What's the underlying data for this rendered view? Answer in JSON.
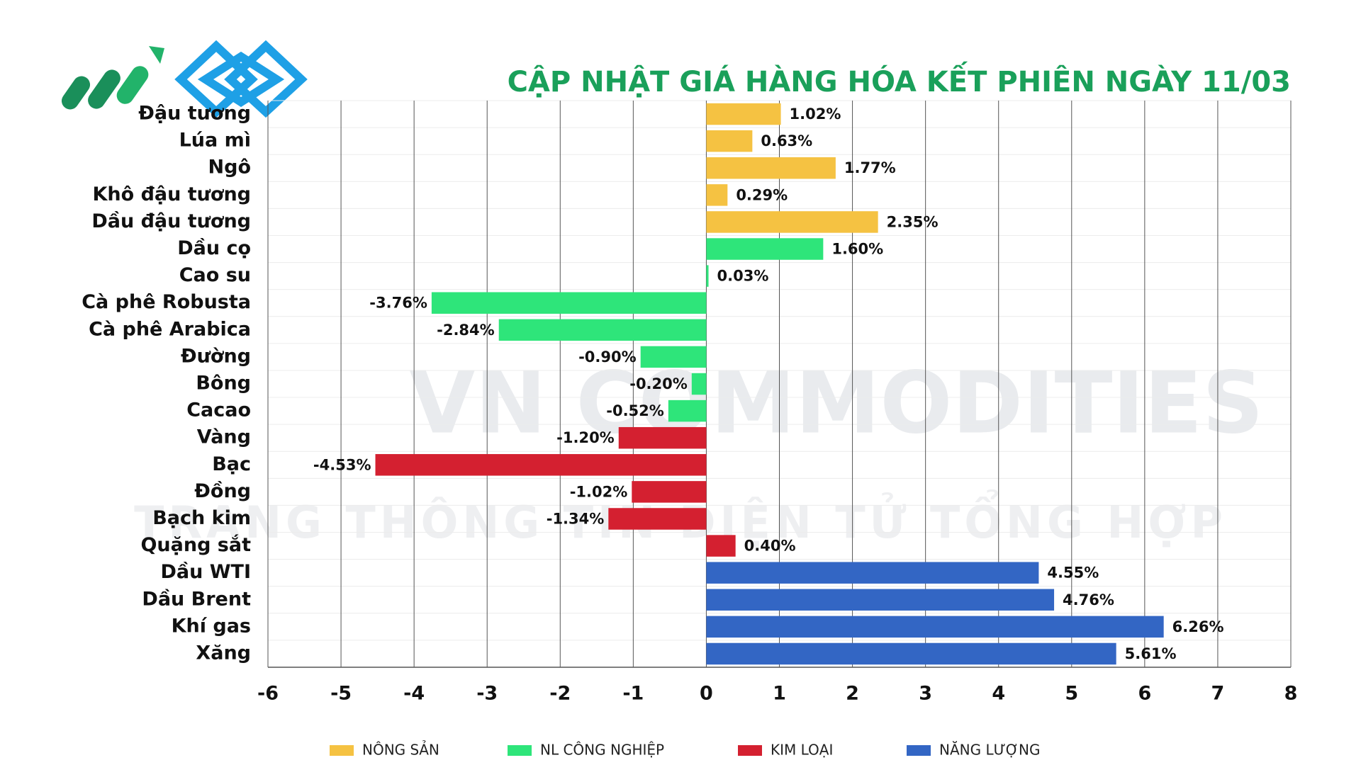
{
  "chart_data": {
    "type": "barh",
    "title": "CẬP NHẬT GIÁ HÀNG HÓA KẾT PHIÊN NGÀY 11/03",
    "watermark": [
      "VN COMMODITIES",
      "TRANG THÔNG TIN ĐIỆN TỬ TỔNG HỢP"
    ],
    "categories": [
      "Đậu tương",
      "Lúa mì",
      "Ngô",
      "Khô đậu tương",
      "Dầu đậu tương",
      "Dầu cọ",
      "Cao su",
      "Cà phê Robusta",
      "Cà phê Arabica",
      "Đường",
      "Bông",
      "Cacao",
      "Vàng",
      "Bạc",
      "Đồng",
      "Bạch kim",
      "Quặng sắt",
      "Dầu WTI",
      "Dầu Brent",
      "Khí gas",
      "Xăng"
    ],
    "series": [
      {
        "name": "NÔNG SẢN",
        "color": "#f5c242",
        "values": [
          1.02,
          0.63,
          1.77,
          0.29,
          2.35,
          null,
          null,
          null,
          null,
          null,
          null,
          null,
          null,
          null,
          null,
          null,
          null,
          null,
          null,
          null,
          null
        ],
        "value_labels": [
          "1.02%",
          "0.63%",
          "1.77%",
          "0.29%",
          "2.35%",
          null,
          null,
          null,
          null,
          null,
          null,
          null,
          null,
          null,
          null,
          null,
          null,
          null,
          null,
          null,
          null
        ]
      },
      {
        "name": "NL CÔNG NGHIỆP",
        "color": "#2ee57a",
        "values": [
          null,
          null,
          null,
          null,
          null,
          1.6,
          0.03,
          -3.76,
          -2.84,
          -0.9,
          -0.2,
          -0.52,
          null,
          null,
          null,
          null,
          null,
          null,
          null,
          null,
          null
        ],
        "value_labels": [
          null,
          null,
          null,
          null,
          null,
          "1.60%",
          "0.03%",
          "-3.76%",
          "-2.84%",
          "-0.90%",
          "-0.20%",
          "-0.52%",
          null,
          null,
          null,
          null,
          null,
          null,
          null,
          null,
          null
        ]
      },
      {
        "name": "KIM LOẠI",
        "color": "#d42030",
        "values": [
          null,
          null,
          null,
          null,
          null,
          null,
          null,
          null,
          null,
          null,
          null,
          null,
          -1.2,
          -4.53,
          -1.02,
          -1.34,
          0.4,
          null,
          null,
          null,
          null
        ],
        "value_labels": [
          null,
          null,
          null,
          null,
          null,
          null,
          null,
          null,
          null,
          null,
          null,
          null,
          "-1.20%",
          "-4.53%",
          "-1.02%",
          "-1.34%",
          "0.40%",
          null,
          null,
          null,
          null
        ]
      },
      {
        "name": "NĂNG LƯỢNG",
        "color": "#3366c4",
        "values": [
          null,
          null,
          null,
          null,
          null,
          null,
          null,
          null,
          null,
          null,
          null,
          null,
          null,
          null,
          null,
          null,
          null,
          4.55,
          4.76,
          6.26,
          5.61
        ],
        "value_labels": [
          null,
          null,
          null,
          null,
          null,
          null,
          null,
          null,
          null,
          null,
          null,
          null,
          null,
          null,
          null,
          null,
          null,
          "4.55%",
          "4.76%",
          "6.26%",
          "5.61%"
        ]
      }
    ],
    "xlim": [
      -6,
      8
    ],
    "xticks": [
      -6,
      -5,
      -4,
      -3,
      -2,
      -1,
      0,
      1,
      2,
      3,
      4,
      5,
      6,
      7,
      8
    ],
    "grid": true,
    "legend": "bottom"
  }
}
